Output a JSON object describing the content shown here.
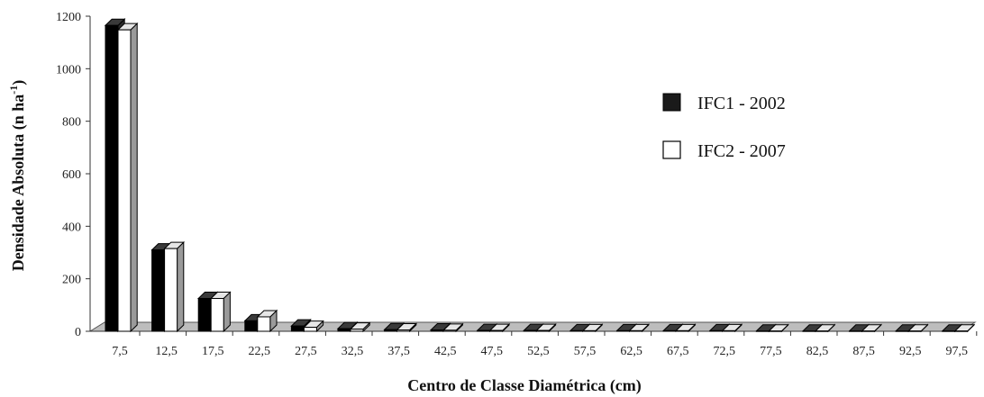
{
  "chart_data": {
    "type": "bar",
    "title": "",
    "xlabel": "Centro de Classe Diamétrica (cm)",
    "ylabel": "Densidade Absoluta (n ha",
    "ylabel_sup": "-1",
    "ylabel_tail": ")",
    "ylim": [
      0,
      1200
    ],
    "yticks": [
      0,
      200,
      400,
      600,
      800,
      1000,
      1200
    ],
    "grid": false,
    "legend_position": "right",
    "categories": [
      "7,5",
      "12,5",
      "17,5",
      "22,5",
      "27,5",
      "32,5",
      "37,5",
      "42,5",
      "47,5",
      "52,5",
      "57,5",
      "62,5",
      "67,5",
      "72,5",
      "77,5",
      "82,5",
      "87,5",
      "92,5",
      "97,5"
    ],
    "series": [
      {
        "name": "IFC1 - 2002",
        "color": "#1a1a1a",
        "values": [
          1165,
          310,
          125,
          40,
          20,
          10,
          6,
          5,
          3,
          3,
          2,
          2,
          2,
          2,
          1,
          1,
          1,
          1,
          1
        ]
      },
      {
        "name": "IFC2 - 2007",
        "color": "#ffffff",
        "values": [
          1148,
          315,
          125,
          55,
          15,
          8,
          5,
          4,
          3,
          3,
          2,
          2,
          2,
          2,
          1,
          1,
          1,
          1,
          1
        ]
      }
    ]
  }
}
